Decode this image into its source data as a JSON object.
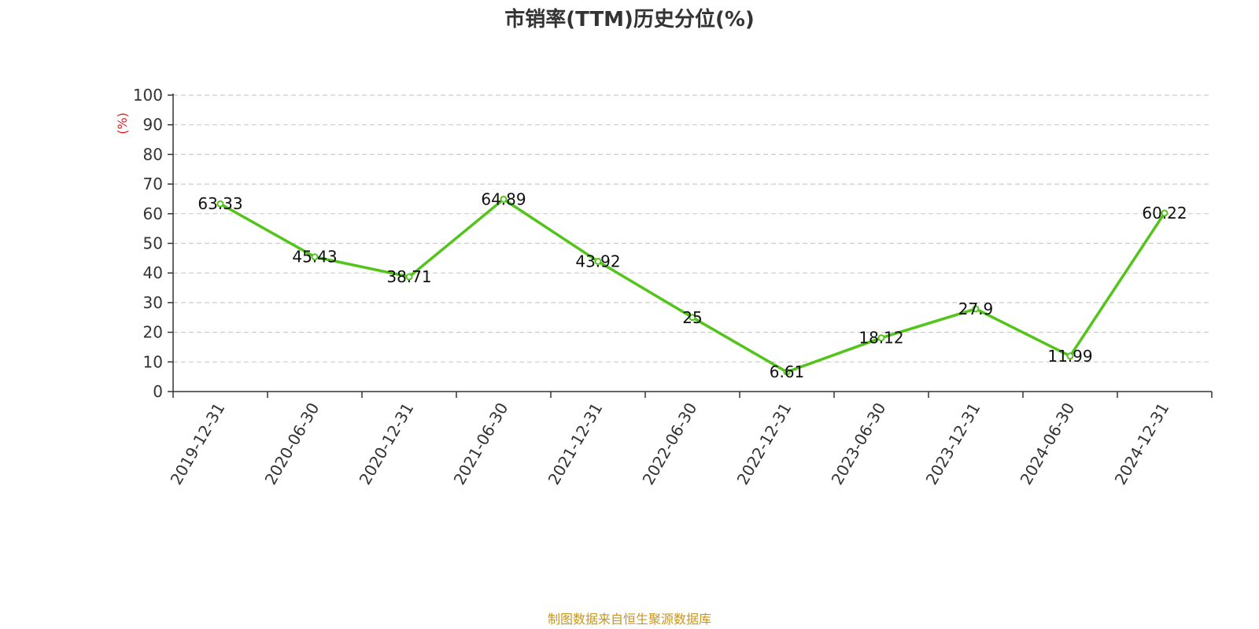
{
  "title": "市销率(TTM)历史分位(%)",
  "source": "制图数据来自恒生聚源数据库",
  "colors": {
    "line": "#52c41a",
    "unit": "#e02020",
    "source": "#c8961e",
    "axis": "#333333",
    "grid": "#cccccc"
  },
  "chart_data": {
    "type": "line",
    "title": "市销率(TTM)历史分位(%)",
    "xlabel": "",
    "ylabel": "(%)",
    "ylim": [
      0,
      100
    ],
    "yticks": [
      0,
      10,
      20,
      30,
      40,
      50,
      60,
      70,
      80,
      90,
      100
    ],
    "grid": true,
    "categories": [
      "2019-12-31",
      "2020-06-30",
      "2020-12-31",
      "2021-06-30",
      "2021-12-31",
      "2022-06-30",
      "2022-12-31",
      "2023-06-30",
      "2023-12-31",
      "2024-06-30",
      "2024-12-31"
    ],
    "series": [
      {
        "values": [
          63.33,
          45.43,
          38.71,
          64.89,
          43.92,
          25,
          6.61,
          18.12,
          27.9,
          11.99,
          60.22
        ],
        "labels": [
          "63.33",
          "45.43",
          "38.71",
          "64.89",
          "43.92",
          "25",
          "6.61",
          "18.12",
          "27.9",
          "11.99",
          "60.22"
        ]
      }
    ]
  }
}
